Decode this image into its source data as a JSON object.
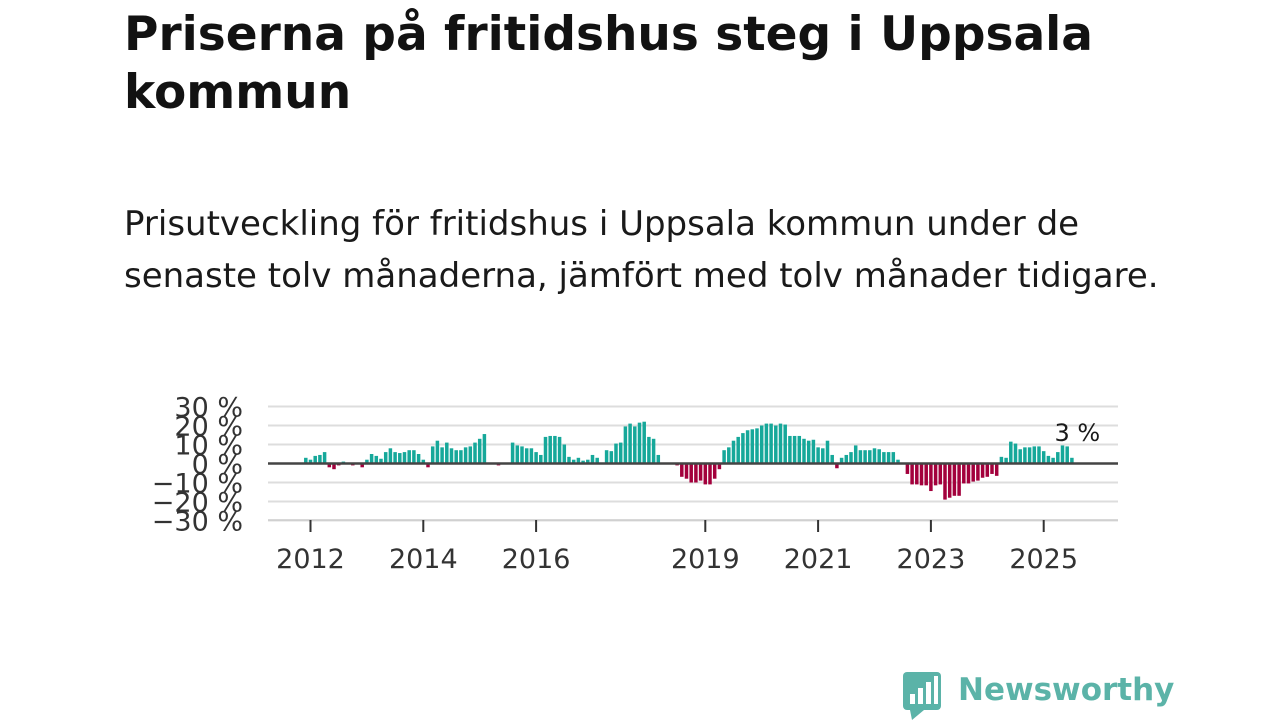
{
  "title": "Priserna på fritidshus steg i Uppsala kommun",
  "subtitle": "Prisutveckling för fritidshus i Uppsala kommun under de senaste tolv månaderna, jämfört med tolv månader tidigare.",
  "brand": {
    "name": "Newsworthy",
    "logo_icon": "bar-chart-speech-bubble-icon"
  },
  "colors": {
    "positive": "#16a89a",
    "negative": "#a3003c",
    "zero_line": "#444444",
    "grid": "#dddddd",
    "brand": "#5bb3a8"
  },
  "chart_data": {
    "type": "bar",
    "title": "",
    "xlabel": "",
    "ylabel": "",
    "ylim": [
      -30,
      30
    ],
    "y_ticks": [
      30,
      20,
      10,
      0,
      -10,
      -20,
      -30
    ],
    "y_tick_labels": [
      "30 %",
      "20 %",
      "10 %",
      "0 %",
      "−10 %",
      "−20 %",
      "−30 %"
    ],
    "x_ticks": [
      "2012",
      "2014",
      "2016",
      "2019",
      "2021",
      "2023",
      "2025"
    ],
    "grid": true,
    "annotation": {
      "label": "3 %",
      "x": "2025-09"
    },
    "x_start": "2011-11",
    "values": [
      0.5,
      3,
      2,
      4,
      4.5,
      6,
      -2,
      -3,
      -1,
      1,
      0.5,
      -1,
      0.5,
      -2,
      2,
      5,
      4,
      2.5,
      6,
      8,
      6,
      5.5,
      6,
      7,
      7,
      5,
      2,
      -2,
      9,
      12,
      8.5,
      11,
      8,
      7,
      7,
      8.5,
      9,
      11,
      13,
      15.5,
      0.5,
      0.5,
      -1,
      0.5,
      0.5,
      11,
      9.5,
      9,
      8,
      8,
      6,
      4.5,
      14,
      14.5,
      14.5,
      14,
      10,
      3.5,
      2,
      3,
      1.5,
      2,
      4.5,
      3,
      -0.5,
      7,
      6.5,
      10.5,
      11,
      19.5,
      21,
      19.5,
      21.5,
      22,
      14,
      13,
      4.5,
      0.5,
      0.5,
      0.5,
      -1,
      -7,
      -8,
      -10,
      -10,
      -9,
      -11,
      -11,
      -8,
      -3,
      7,
      8.5,
      12,
      14,
      16,
      17.5,
      18,
      18.5,
      20,
      21,
      21,
      20,
      21,
      20.5,
      14.5,
      14.5,
      14.5,
      13,
      12,
      12.5,
      8.5,
      8,
      12,
      4.5,
      -2.5,
      3,
      4.5,
      6,
      9.5,
      7,
      7,
      7,
      8,
      7.5,
      6,
      6,
      6,
      2,
      0.5,
      -5.5,
      -11,
      -11,
      -11.5,
      -11.5,
      -14.5,
      -11.5,
      -11,
      -19,
      -18,
      -17,
      -17,
      -10.5,
      -10.5,
      -9.5,
      -9,
      -7.5,
      -7,
      -5.5,
      -6.5,
      3.5,
      3,
      11.5,
      10.5,
      7.5,
      8.5,
      8.5,
      9,
      9,
      6.5,
      4,
      3,
      6,
      9.5,
      9,
      3
    ]
  }
}
